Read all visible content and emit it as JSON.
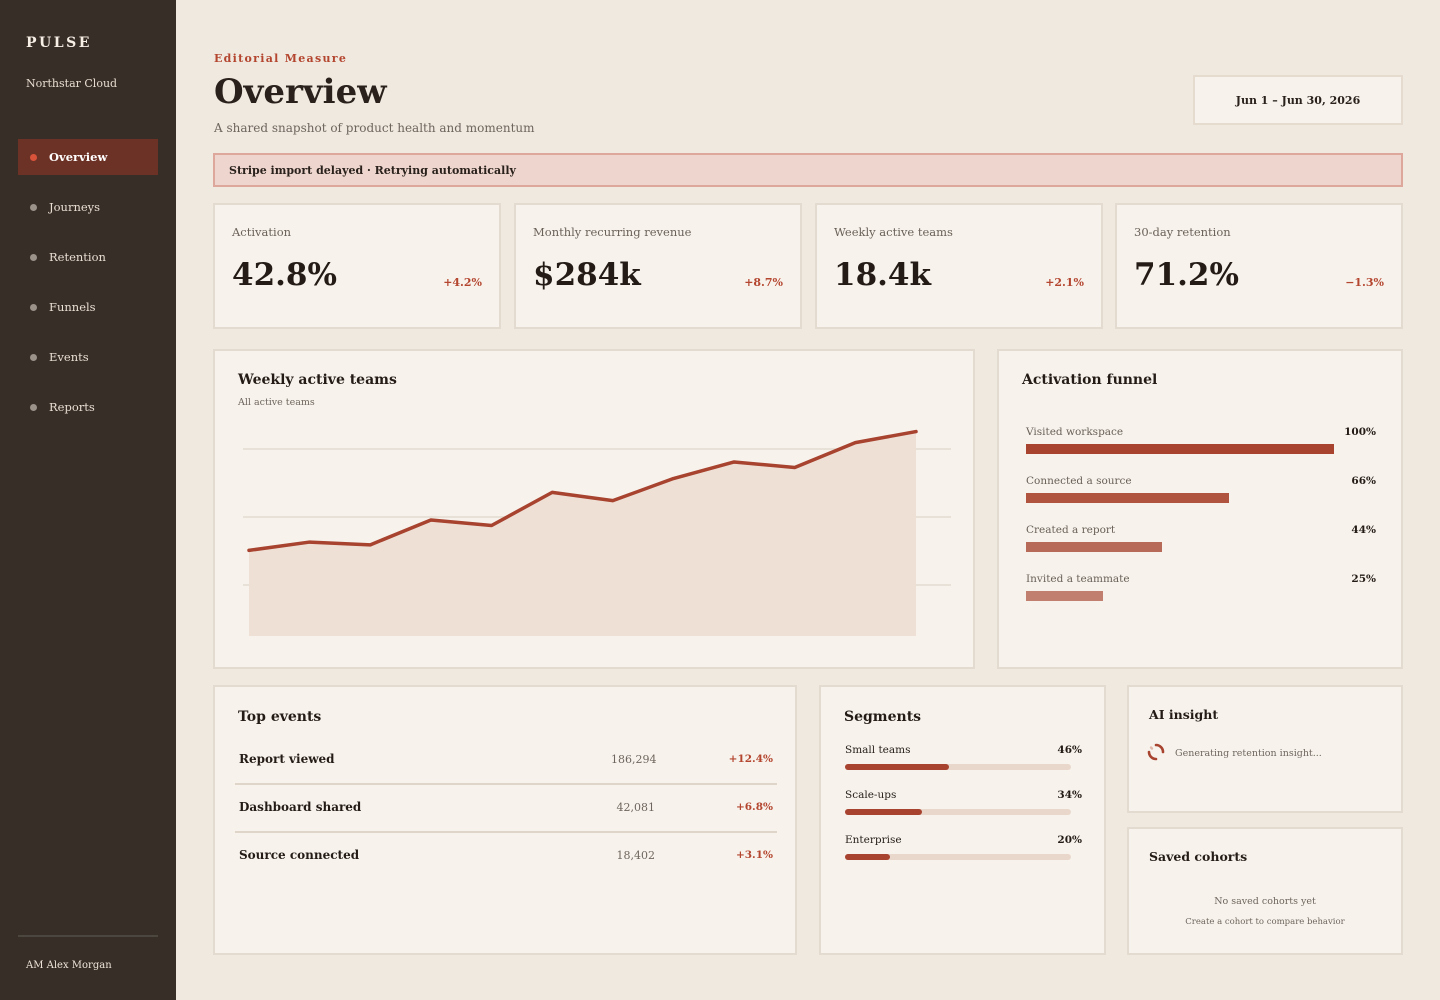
{
  "sidebar": {
    "brand": "PULSE",
    "org": "Northstar Cloud",
    "items": [
      {
        "label": "Overview",
        "active": true
      },
      {
        "label": "Journeys"
      },
      {
        "label": "Retention"
      },
      {
        "label": "Funnels"
      },
      {
        "label": "Events"
      },
      {
        "label": "Reports"
      }
    ],
    "user": "AM Alex Morgan"
  },
  "header": {
    "eyebrow": "Editorial Measure",
    "title": "Overview",
    "subtitle": "A shared snapshot of product health and momentum",
    "date_range": "Jun 1 – Jun 30, 2026"
  },
  "alert": {
    "text": "Stripe import delayed · Retrying automatically"
  },
  "kpis": [
    {
      "label": "Activation",
      "value": "42.8%",
      "delta": "+4.2%"
    },
    {
      "label": "Monthly recurring revenue",
      "value": "$284k",
      "delta": "+8.7%"
    },
    {
      "label": "Weekly active teams",
      "value": "18.4k",
      "delta": "+2.1%"
    },
    {
      "label": "30-day retention",
      "value": "71.2%",
      "delta": "−1.3%"
    }
  ],
  "wat_card": {
    "title": "Weekly active teams",
    "subtitle": "All active teams"
  },
  "chart_data": {
    "type": "area",
    "title": "Weekly active teams",
    "subtitle": "All active teams",
    "x": [
      1,
      2,
      3,
      4,
      5,
      6,
      7,
      8,
      9,
      10,
      11,
      12
    ],
    "values": [
      14.1,
      14.4,
      14.3,
      15.2,
      15.0,
      16.2,
      15.9,
      16.7,
      17.3,
      17.1,
      18.0,
      18.4
    ],
    "ylim": [
      11,
      19
    ],
    "grid": true,
    "colors": {
      "line": "#a7432f",
      "fill": "#efe0d6",
      "grid": "#e2dbd0"
    }
  },
  "funnel": {
    "title": "Activation funnel",
    "steps": [
      {
        "label": "Visited workspace",
        "pct_label": "100%",
        "value": 100,
        "color": "#a7432f"
      },
      {
        "label": "Connected a source",
        "pct_label": "66%",
        "value": 66,
        "color": "#b0533f"
      },
      {
        "label": "Created a report",
        "pct_label": "44%",
        "value": 44,
        "color": "#b86a58"
      },
      {
        "label": "Invited a teammate",
        "pct_label": "25%",
        "value": 25,
        "color": "#c17f70"
      }
    ]
  },
  "top_events": {
    "title": "Top events",
    "rows": [
      {
        "name": "Report viewed",
        "count": "186,294",
        "delta": "+12.4%"
      },
      {
        "name": "Dashboard shared",
        "count": "42,081",
        "delta": "+6.8%"
      },
      {
        "name": "Source connected",
        "count": "18,402",
        "delta": "+3.1%"
      }
    ]
  },
  "segments": {
    "title": "Segments",
    "rows": [
      {
        "label": "Small teams",
        "pct_label": "46%",
        "value": 46
      },
      {
        "label": "Scale-ups",
        "pct_label": "34%",
        "value": 34
      },
      {
        "label": "Enterprise",
        "pct_label": "20%",
        "value": 20
      }
    ]
  },
  "ai_insight": {
    "title": "AI insight",
    "status": "Generating retention insight..."
  },
  "saved_cohorts": {
    "title": "Saved cohorts",
    "empty_title": "No saved cohorts yet",
    "empty_hint": "Create a cohort to compare behavior"
  }
}
